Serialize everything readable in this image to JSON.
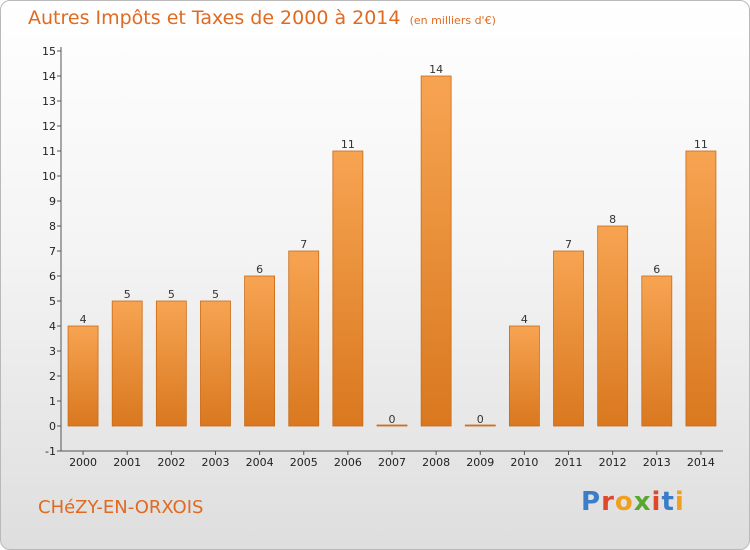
{
  "header": {
    "title": "Autres Impôts et Taxes de 2000 à 2014",
    "subtitle": "(en milliers d'€)"
  },
  "footer": {
    "commune": "CHéZY-EN-ORXOIS",
    "logo_letters": [
      "P",
      "r",
      "o",
      "x",
      "i",
      "t",
      "i"
    ]
  },
  "colors": {
    "title": "#e06a22",
    "bar_top": "#f7a452",
    "bar_bottom": "#d9781f",
    "bar_border": "#c96a18"
  },
  "chart_data": {
    "type": "bar",
    "title": "Autres Impôts et Taxes de 2000 à 2014",
    "subtitle": "(en milliers d'€)",
    "xlabel": "",
    "ylabel": "",
    "categories": [
      "2000",
      "2001",
      "2002",
      "2003",
      "2004",
      "2005",
      "2006",
      "2007",
      "2008",
      "2009",
      "2010",
      "2011",
      "2012",
      "2013",
      "2014"
    ],
    "values": [
      4,
      5,
      5,
      5,
      6,
      7,
      11,
      0,
      14,
      0,
      4,
      7,
      8,
      6,
      11
    ],
    "data_labels": [
      "4",
      "5",
      "5",
      "5",
      "6",
      "7",
      "11",
      "0",
      "14",
      "0",
      "4",
      "7",
      "8",
      "6",
      "11"
    ],
    "ylim": [
      -1,
      15
    ],
    "yticks": [
      -1,
      0,
      1,
      2,
      3,
      4,
      5,
      6,
      7,
      8,
      9,
      10,
      11,
      12,
      13,
      14,
      15
    ],
    "ytick_labels": [
      "-1",
      "0",
      "1",
      "2",
      "3",
      "4",
      "5",
      "6",
      "7",
      "8",
      "9",
      "10",
      "11",
      "12",
      "13",
      "14",
      "15"
    ],
    "grid": false,
    "legend": "none"
  }
}
